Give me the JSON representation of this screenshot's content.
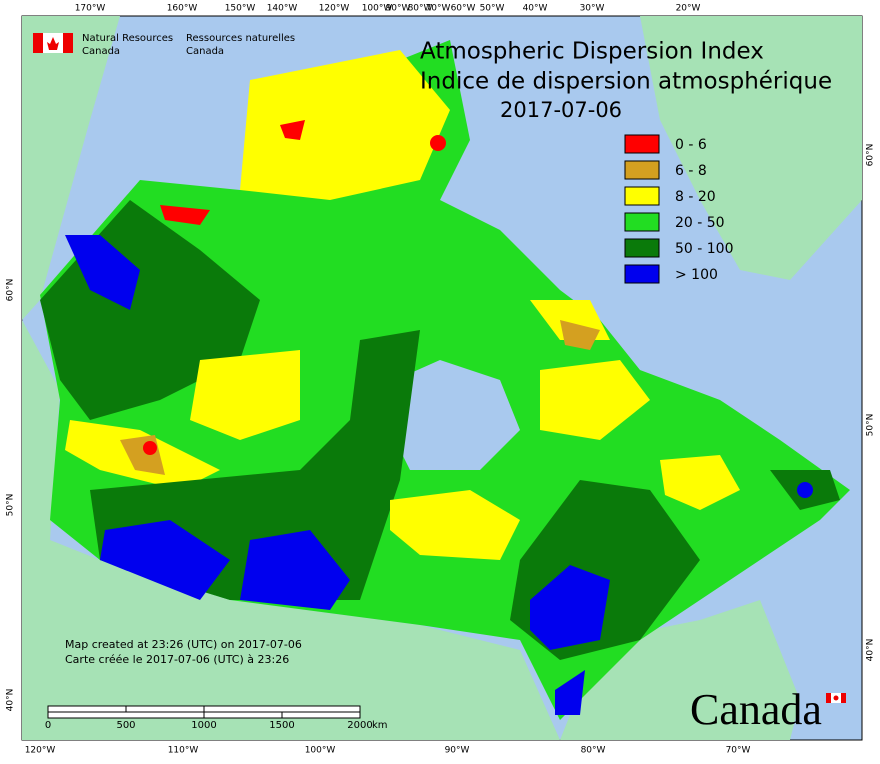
{
  "header": {
    "agency_en": [
      "Natural Resources",
      "Canada"
    ],
    "agency_fr": [
      "Ressources naturelles",
      "Canada"
    ]
  },
  "title": {
    "en": "Atmospheric Dispersion Index",
    "fr": "Indice de dispersion atmosphérique",
    "date": "2017-07-06"
  },
  "legend": [
    {
      "label": "0 - 6",
      "color": "#ff0000"
    },
    {
      "label": "6 - 8",
      "color": "#d4a020"
    },
    {
      "label": "8 - 20",
      "color": "#ffff00"
    },
    {
      "label": "20 - 50",
      "color": "#22dd22"
    },
    {
      "label": "50 - 100",
      "color": "#0a7a0a"
    },
    {
      "label": "> 100",
      "color": "#0000ee"
    }
  ],
  "graticule": {
    "top": [
      "170°W",
      "160°W",
      "150°W",
      "140°W",
      "120°W",
      "100°W",
      "90°W",
      "80°W",
      "70°W",
      "60°W",
      "50°W",
      "40°W",
      "30°W",
      "20°W"
    ],
    "bottom": [
      "120°W",
      "110°W",
      "100°W",
      "90°W",
      "80°W",
      "70°W"
    ],
    "left": [
      "60°N",
      "50°N",
      "40°N"
    ],
    "right": [
      "60°N",
      "50°N",
      "40°N"
    ]
  },
  "notes": [
    "Map created at 23:26 (UTC) on 2017-07-06",
    "Carte créée le 2017-07-06 (UTC) à 23:26"
  ],
  "scale_bar": {
    "labels": [
      "0",
      "500",
      "1000",
      "1500",
      "2000"
    ],
    "unit": "km"
  },
  "wordmark": "Canada"
}
